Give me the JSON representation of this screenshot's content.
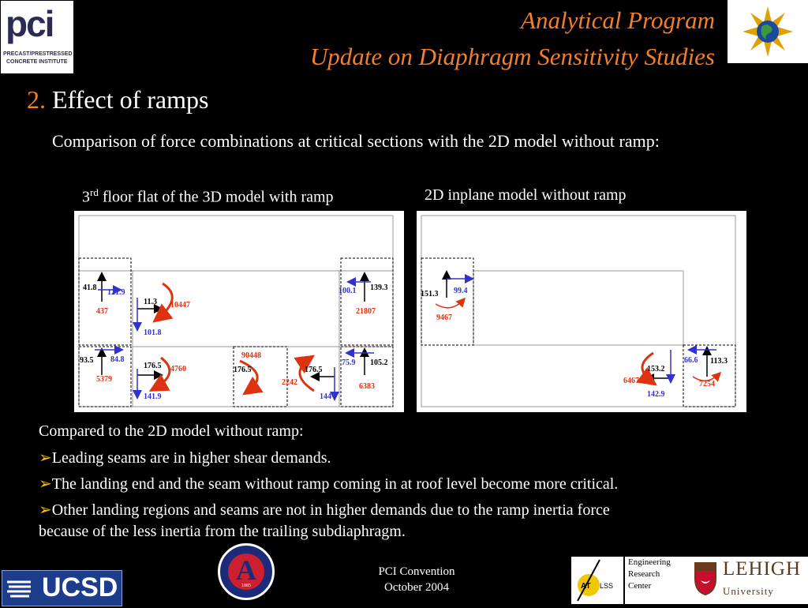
{
  "header": {
    "title_line1": "Analytical Program",
    "title_line2": "Update on Diaphragm Sensitivity Studies",
    "pci_logo_text": "pci",
    "pci_logo_sub1": "PRECAST/PRESTRESSED",
    "pci_logo_sub2": "CONCRETE INSTITUTE"
  },
  "section": {
    "number": "2.",
    "heading": "Effect of ramps",
    "description": "Comparison of force combinations at critical sections with the 2D model without ramp:"
  },
  "panels": {
    "left_caption_pre": "3",
    "left_caption_sup": "rd",
    "left_caption_post": " floor flat of the 3D model with ramp",
    "right_caption": "2D inplane model without ramp"
  },
  "left_labels": {
    "l1": "41.8",
    "l2": "121.9",
    "l3": "437",
    "l4": "11.3",
    "l5": "10447",
    "l6": "101.8",
    "l7": "100.1",
    "l8": "139.3",
    "l9": "21807",
    "l10": "93.5",
    "l11": "84.8",
    "l12": "5379",
    "l13": "176.5",
    "l14": "4760",
    "l15": "141.9",
    "l16": "90448",
    "l17": "176.5",
    "l18": "2242",
    "l19": "176.5",
    "l20": "144",
    "l21": "75.9",
    "l22": "105.2",
    "l23": "6383"
  },
  "right_labels": {
    "r1": "151.3",
    "r2": "99.4",
    "r3": "9467",
    "r4": "153.2",
    "r5": "6467",
    "r6": "142.9",
    "r7": "66.6",
    "r8": "113.3",
    "r9": "7254"
  },
  "conclusions": {
    "intro": "Compared to the 2D model without ramp:",
    "bullet1": "Leading seams are in higher shear demands.",
    "bullet2": "The landing end and the seam without ramp coming in at roof level become more critical.",
    "bullet3_line1": "Other landing regions and seams are not in higher demands due to the ramp inertia force",
    "bullet3_line2": "because of the less inertia from the trailing subdiaphragm."
  },
  "footer": {
    "ucsd": "UCSD",
    "conference": "PCI Convention",
    "date": "October 2004",
    "atlss": "ATLSS",
    "erc_line1": "Engineering",
    "erc_line2": "Research",
    "erc_line3": "Center",
    "lehigh": "LEHIGH",
    "lehigh_sub": "University",
    "ua_ring_text": "CIVIL ENGINEERING · ENGINEERING MECHANICS",
    "ua_year": "1885"
  },
  "colors": {
    "title": "#f07f2a",
    "bullet_arrow": "#f7c000",
    "force_blue": "#3333cc",
    "force_red": "#dd3311",
    "background": "#000000"
  }
}
